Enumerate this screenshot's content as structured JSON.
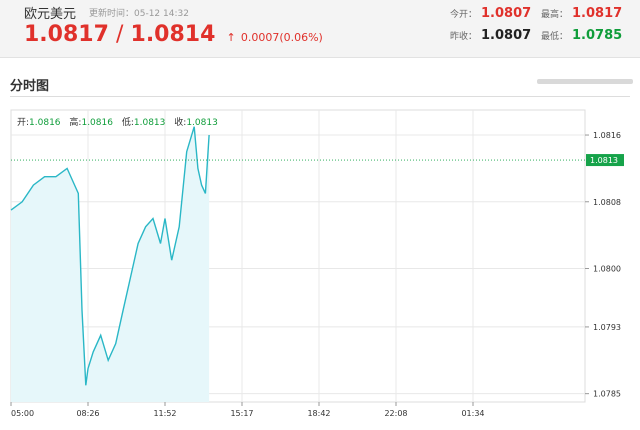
{
  "header": {
    "pair_name": "欧元美元",
    "update_time": "更新时间：05-12 14:32",
    "price_current": "1.0817",
    "separator": "/",
    "price_second": "1.0814",
    "change_arrow": "↑",
    "change_text": "0.0007(0.06%)",
    "stats": {
      "open_label": "今开：",
      "open_value": "1.0807",
      "high_label": "最高：",
      "high_value": "1.0817",
      "prev_close_label": "昨收：",
      "prev_close_value": "1.0807",
      "low_label": "最低：",
      "low_value": "1.0785"
    }
  },
  "section": {
    "title": "分时图"
  },
  "colors": {
    "red": "#e0312b",
    "green": "#0f9d3a",
    "line": "#2ab7c6",
    "area": "#e6f7fa",
    "tag": "#16a34a",
    "grid": "#e8e8e8"
  },
  "chart_data": {
    "type": "area",
    "ohlc": {
      "open_label": "开:",
      "open": "1.0816",
      "high_label": "高:",
      "high": "1.0816",
      "low_label": "低:",
      "low": "1.0813",
      "close_label": "收:",
      "close": "1.0813"
    },
    "x_ticks": [
      "05:00",
      "08:26",
      "11:52",
      "15:17",
      "18:42",
      "22:08",
      "01:34"
    ],
    "y_ticks": [
      "1.0816",
      "1.0808",
      "1.0800",
      "1.0793",
      "1.0785"
    ],
    "current_price_tag": "1.0813",
    "reference_level": 1.0813,
    "ylim": [
      1.0784,
      1.0819
    ],
    "series": [
      {
        "x": [
          "05:00",
          "05:30",
          "06:00",
          "06:30",
          "07:00",
          "07:30",
          "08:00",
          "08:10",
          "08:20",
          "08:26",
          "08:40",
          "09:00",
          "09:20",
          "09:40",
          "10:00",
          "10:20",
          "10:40",
          "11:00",
          "11:20",
          "11:40",
          "11:52",
          "12:10",
          "12:30",
          "12:50",
          "13:10",
          "13:20",
          "13:30",
          "13:40",
          "13:50"
        ],
        "y": [
          1.0807,
          1.0808,
          1.081,
          1.0811,
          1.0811,
          1.0812,
          1.0809,
          1.0795,
          1.0786,
          1.0788,
          1.079,
          1.0792,
          1.0789,
          1.0791,
          1.0795,
          1.0799,
          1.0803,
          1.0805,
          1.0806,
          1.0803,
          1.0806,
          1.0801,
          1.0805,
          1.0814,
          1.0817,
          1.0812,
          1.081,
          1.0809,
          1.0816
        ]
      }
    ]
  }
}
